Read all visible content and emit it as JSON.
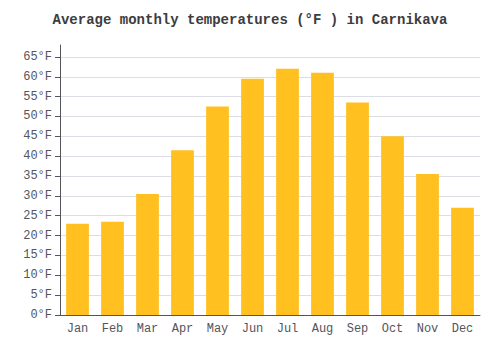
{
  "chart_data": {
    "type": "bar",
    "title": "Average monthly temperatures (°F ) in Carnikava",
    "categories": [
      "Jan",
      "Feb",
      "Mar",
      "Apr",
      "May",
      "Jun",
      "Jul",
      "Aug",
      "Sep",
      "Oct",
      "Nov",
      "Dec"
    ],
    "values": [
      23,
      23.5,
      30.5,
      41.5,
      52.5,
      59.5,
      62,
      61,
      53.5,
      45,
      35.5,
      27
    ],
    "color": "#FFC020",
    "ylim": [
      0,
      68
    ],
    "yticks": [
      {
        "value": 0,
        "label": "0°F"
      },
      {
        "value": 5,
        "label": "5°F"
      },
      {
        "value": 10,
        "label": "10°F"
      },
      {
        "value": 15,
        "label": "15°F"
      },
      {
        "value": 20,
        "label": "20°F"
      },
      {
        "value": 25,
        "label": "25°F"
      },
      {
        "value": 30,
        "label": "30°F"
      },
      {
        "value": 35,
        "label": "35°F"
      },
      {
        "value": 40,
        "label": "40°F"
      },
      {
        "value": 45,
        "label": "45°F"
      },
      {
        "value": 50,
        "label": "50°F"
      },
      {
        "value": 55,
        "label": "55°F"
      },
      {
        "value": 60,
        "label": "60°F"
      },
      {
        "value": 65,
        "label": "65°F"
      }
    ],
    "grid": true
  }
}
